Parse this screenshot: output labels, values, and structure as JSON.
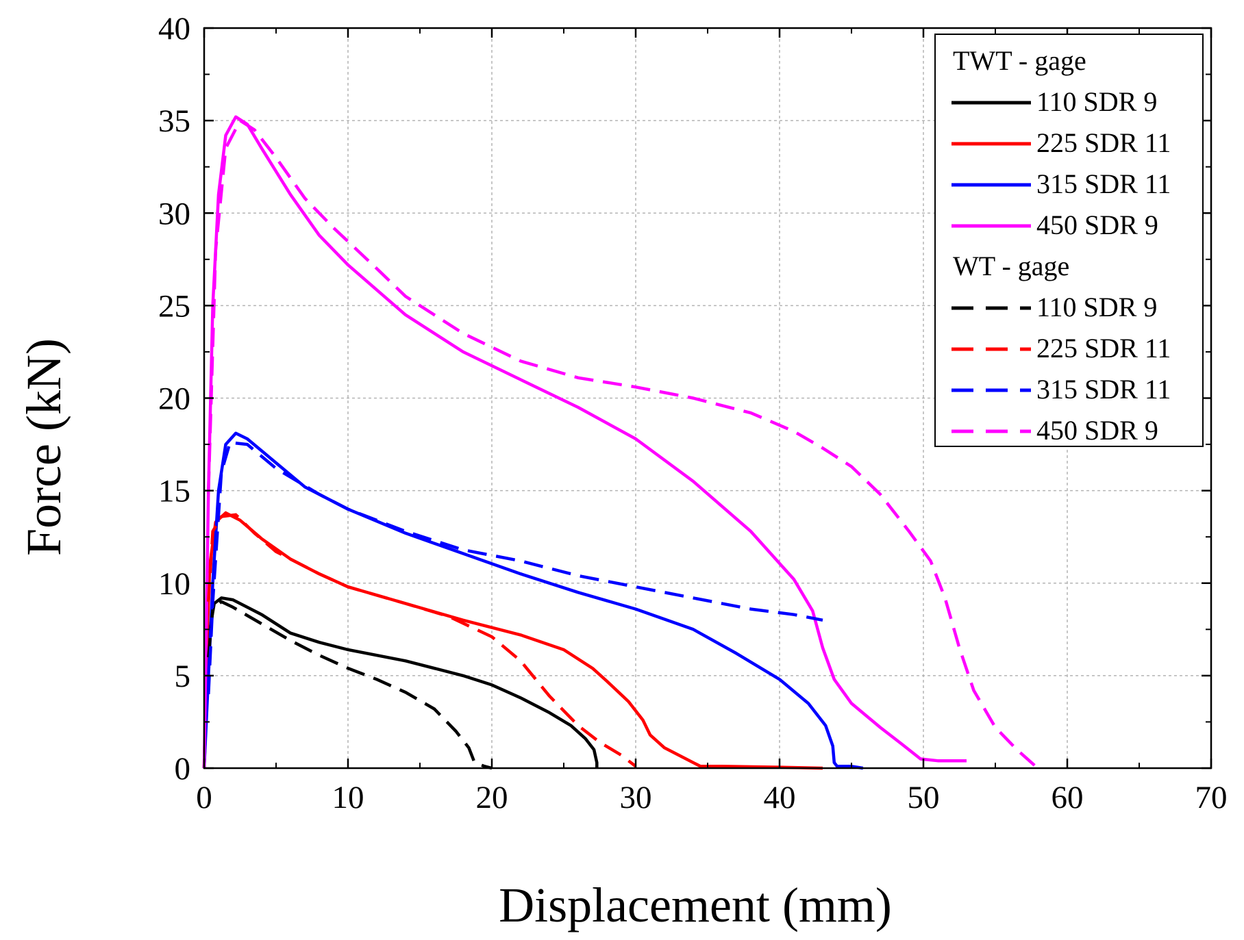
{
  "chart_data": {
    "type": "line",
    "title": "",
    "xlabel": "Displacement (mm)",
    "ylabel": "Force (kN)",
    "xlim": [
      0,
      70
    ],
    "ylim": [
      0,
      40
    ],
    "xticks": [
      0,
      10,
      20,
      30,
      40,
      50,
      60,
      70
    ],
    "yticks": [
      0,
      5,
      10,
      15,
      20,
      25,
      30,
      35,
      40
    ],
    "grid": true,
    "legend_position": "top-right",
    "legend_groups": [
      {
        "title": "TWT - gage",
        "style": "solid"
      },
      {
        "title": "WT - gage",
        "style": "dashed"
      }
    ],
    "series": [
      {
        "name": "110 SDR 9",
        "group": "TWT - gage",
        "color": "#000000",
        "style": "solid",
        "points": [
          [
            0,
            0
          ],
          [
            0.2,
            4
          ],
          [
            0.4,
            7.5
          ],
          [
            0.7,
            8.9
          ],
          [
            1.2,
            9.2
          ],
          [
            2,
            9.1
          ],
          [
            4,
            8.3
          ],
          [
            6,
            7.3
          ],
          [
            8,
            6.8
          ],
          [
            10,
            6.4
          ],
          [
            14,
            5.8
          ],
          [
            18,
            5.0
          ],
          [
            20,
            4.5
          ],
          [
            22,
            3.8
          ],
          [
            24,
            3.0
          ],
          [
            25.5,
            2.3
          ],
          [
            26.5,
            1.6
          ],
          [
            27.1,
            1.0
          ],
          [
            27.3,
            0.3
          ],
          [
            27.3,
            0
          ]
        ]
      },
      {
        "name": "225 SDR 11",
        "group": "TWT - gage",
        "color": "#ff0000",
        "style": "solid",
        "points": [
          [
            0,
            0
          ],
          [
            0.2,
            7
          ],
          [
            0.4,
            11
          ],
          [
            0.8,
            13.3
          ],
          [
            1.5,
            13.8
          ],
          [
            2.5,
            13.4
          ],
          [
            4,
            12.4
          ],
          [
            6,
            11.3
          ],
          [
            8,
            10.5
          ],
          [
            10,
            9.8
          ],
          [
            14,
            8.9
          ],
          [
            18,
            8.0
          ],
          [
            22,
            7.2
          ],
          [
            25,
            6.4
          ],
          [
            27,
            5.4
          ],
          [
            28,
            4.7
          ],
          [
            29.5,
            3.6
          ],
          [
            30.5,
            2.6
          ],
          [
            31,
            1.8
          ],
          [
            32,
            1.1
          ],
          [
            33.5,
            0.5
          ],
          [
            34.5,
            0.1
          ],
          [
            36,
            0.1
          ],
          [
            40,
            0.05
          ],
          [
            43,
            0
          ]
        ]
      },
      {
        "name": "315 SDR 11",
        "group": "TWT - gage",
        "color": "#0000ff",
        "style": "solid",
        "points": [
          [
            0,
            0
          ],
          [
            0.3,
            5
          ],
          [
            0.6,
            10
          ],
          [
            1,
            15
          ],
          [
            1.5,
            17.5
          ],
          [
            2.2,
            18.1
          ],
          [
            3,
            17.8
          ],
          [
            5,
            16.5
          ],
          [
            7,
            15.2
          ],
          [
            10,
            14.0
          ],
          [
            14,
            12.7
          ],
          [
            18,
            11.6
          ],
          [
            22,
            10.5
          ],
          [
            26,
            9.5
          ],
          [
            30,
            8.6
          ],
          [
            34,
            7.5
          ],
          [
            37,
            6.2
          ],
          [
            40,
            4.8
          ],
          [
            42,
            3.5
          ],
          [
            43.2,
            2.3
          ],
          [
            43.7,
            1.2
          ],
          [
            43.8,
            0.3
          ],
          [
            44,
            0.1
          ],
          [
            45,
            0.1
          ],
          [
            45.8,
            0
          ]
        ]
      },
      {
        "name": "450 SDR 9",
        "group": "TWT - gage",
        "color": "#ff00ff",
        "style": "solid",
        "points": [
          [
            0,
            0
          ],
          [
            0.3,
            15
          ],
          [
            0.6,
            25
          ],
          [
            1,
            31
          ],
          [
            1.5,
            34.2
          ],
          [
            2.2,
            35.2
          ],
          [
            3,
            34.8
          ],
          [
            4,
            33.5
          ],
          [
            6,
            31.0
          ],
          [
            8,
            28.8
          ],
          [
            10,
            27.2
          ],
          [
            14,
            24.5
          ],
          [
            18,
            22.5
          ],
          [
            22,
            21.0
          ],
          [
            26,
            19.5
          ],
          [
            30,
            17.8
          ],
          [
            34,
            15.5
          ],
          [
            38,
            12.8
          ],
          [
            41,
            10.2
          ],
          [
            42.3,
            8.5
          ],
          [
            43,
            6.5
          ],
          [
            43.8,
            4.8
          ],
          [
            45,
            3.5
          ],
          [
            47,
            2.2
          ],
          [
            48.5,
            1.3
          ],
          [
            49.8,
            0.5
          ],
          [
            51,
            0.4
          ],
          [
            53,
            0.4
          ]
        ]
      },
      {
        "name": "110 SDR 9",
        "group": "WT - gage",
        "color": "#000000",
        "style": "dashed",
        "points": [
          [
            0.3,
            6
          ],
          [
            0.6,
            8.6
          ],
          [
            1.2,
            9.0
          ],
          [
            2,
            8.7
          ],
          [
            4,
            7.8
          ],
          [
            6,
            6.9
          ],
          [
            8,
            6.1
          ],
          [
            10,
            5.4
          ],
          [
            12,
            4.8
          ],
          [
            14,
            4.1
          ],
          [
            16,
            3.2
          ],
          [
            17.5,
            2.0
          ],
          [
            18.4,
            1.1
          ],
          [
            18.8,
            0.3
          ],
          [
            19.5,
            0.1
          ],
          [
            20,
            0
          ]
        ]
      },
      {
        "name": "225 SDR 11",
        "group": "WT - gage",
        "color": "#ff0000",
        "style": "dashed",
        "points": [
          [
            0.3,
            9
          ],
          [
            0.6,
            12.8
          ],
          [
            1.2,
            13.6
          ],
          [
            2.2,
            13.7
          ],
          [
            3.5,
            12.7
          ],
          [
            5,
            11.7
          ],
          [
            8,
            10.5
          ],
          [
            10,
            9.8
          ],
          [
            14,
            8.9
          ],
          [
            17,
            8.2
          ],
          [
            20,
            7.1
          ],
          [
            22,
            5.8
          ],
          [
            24,
            3.9
          ],
          [
            26,
            2.3
          ],
          [
            27.5,
            1.4
          ],
          [
            29,
            0.7
          ],
          [
            30,
            0.1
          ]
        ]
      },
      {
        "name": "315 SDR 11",
        "group": "WT - gage",
        "color": "#0000ff",
        "style": "dashed",
        "points": [
          [
            0.3,
            4
          ],
          [
            0.6,
            9
          ],
          [
            1.2,
            16
          ],
          [
            1.8,
            17.6
          ],
          [
            3,
            17.5
          ],
          [
            5,
            16.2
          ],
          [
            8,
            14.8
          ],
          [
            10,
            14.0
          ],
          [
            14,
            12.8
          ],
          [
            18,
            11.8
          ],
          [
            22,
            11.2
          ],
          [
            26,
            10.4
          ],
          [
            30,
            9.8
          ],
          [
            34,
            9.2
          ],
          [
            38,
            8.6
          ],
          [
            41,
            8.3
          ],
          [
            43,
            8.0
          ]
        ]
      },
      {
        "name": "450 SDR 9",
        "group": "WT - gage",
        "color": "#ff00ff",
        "style": "dashed",
        "points": [
          [
            0.3,
            15
          ],
          [
            0.8,
            28
          ],
          [
            1.5,
            33.5
          ],
          [
            2.5,
            35
          ],
          [
            3.5,
            34.5
          ],
          [
            5,
            33
          ],
          [
            7,
            30.8
          ],
          [
            9,
            29.2
          ],
          [
            12,
            27
          ],
          [
            14,
            25.5
          ],
          [
            18,
            23.5
          ],
          [
            22,
            22.0
          ],
          [
            26,
            21.1
          ],
          [
            30,
            20.6
          ],
          [
            34,
            20.0
          ],
          [
            38,
            19.2
          ],
          [
            41,
            18.2
          ],
          [
            43,
            17.3
          ],
          [
            45,
            16.3
          ],
          [
            47,
            14.8
          ],
          [
            49,
            12.8
          ],
          [
            50.5,
            11.2
          ],
          [
            51.5,
            9.2
          ],
          [
            52.5,
            6.5
          ],
          [
            53.5,
            4.2
          ],
          [
            55,
            2.2
          ],
          [
            56.5,
            1.0
          ],
          [
            57.8,
            0.1
          ]
        ]
      }
    ]
  }
}
